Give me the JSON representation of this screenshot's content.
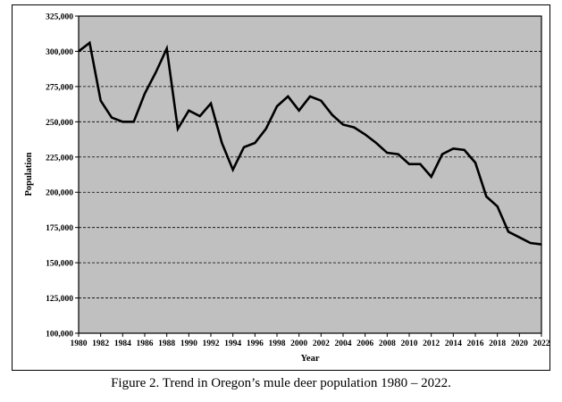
{
  "caption": "Figure 2. Trend in Oregon’s mule deer population 1980 – 2022.",
  "chart_data": {
    "type": "line",
    "title": "",
    "xlabel": "Year",
    "ylabel": "Population",
    "xlim": [
      1980,
      2022
    ],
    "ylim": [
      100000,
      325000
    ],
    "x_ticks": [
      1980,
      1982,
      1984,
      1986,
      1988,
      1990,
      1992,
      1994,
      1996,
      1998,
      2000,
      2002,
      2004,
      2006,
      2008,
      2010,
      2012,
      2014,
      2016,
      2018,
      2020,
      2022
    ],
    "y_ticks": [
      100000,
      125000,
      150000,
      175000,
      200000,
      225000,
      250000,
      275000,
      300000,
      325000
    ],
    "y_tick_labels": [
      "100,000",
      "125,000",
      "150,000",
      "175,000",
      "200,000",
      "225,000",
      "250,000",
      "275,000",
      "300,000",
      "325,000"
    ],
    "grid": "horizontal-dashed",
    "plot_background": "#c0c0c0",
    "line_color": "#000000",
    "series": [
      {
        "name": "",
        "x": [
          1980,
          1981,
          1982,
          1983,
          1984,
          1985,
          1986,
          1987,
          1988,
          1989,
          1990,
          1991,
          1992,
          1993,
          1994,
          1995,
          1996,
          1997,
          1998,
          1999,
          2000,
          2001,
          2002,
          2003,
          2004,
          2005,
          2006,
          2007,
          2008,
          2009,
          2010,
          2011,
          2012,
          2013,
          2014,
          2015,
          2016,
          2017,
          2018,
          2019,
          2020,
          2021,
          2022
        ],
        "values": [
          300000,
          306000,
          265000,
          253000,
          250000,
          250000,
          270000,
          285000,
          302000,
          245000,
          258000,
          254000,
          263000,
          235000,
          216000,
          232000,
          235000,
          245000,
          261000,
          268000,
          258000,
          268000,
          265000,
          255000,
          248000,
          246000,
          241000,
          235000,
          228000,
          227000,
          220000,
          220000,
          211000,
          227000,
          231000,
          230000,
          221000,
          197000,
          190000,
          172000,
          168000,
          164000,
          163000
        ]
      }
    ]
  }
}
